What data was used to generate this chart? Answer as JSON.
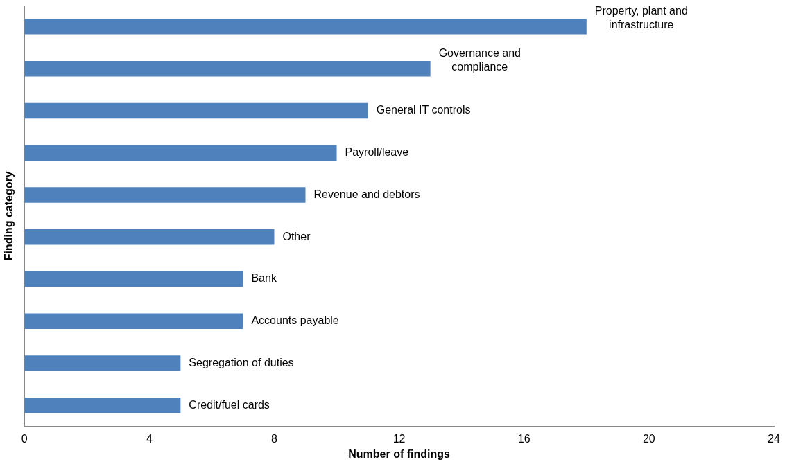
{
  "chart_data": {
    "type": "bar",
    "orientation": "horizontal",
    "xlabel": "Number of findings",
    "ylabel": "Finding category",
    "categories": [
      "Property, plant and infrastructure",
      "Governance and compliance",
      "General IT controls",
      "Payroll/leave",
      "Revenue and debtors",
      "Other",
      "Bank",
      "Accounts payable",
      "Segregation of duties",
      "Credit/fuel cards"
    ],
    "values": [
      18,
      13,
      11,
      10,
      9,
      8,
      7,
      7,
      5,
      5
    ],
    "color": "#4f81bd",
    "xlim": [
      0,
      24
    ],
    "xticks": [
      0,
      4,
      8,
      12,
      16,
      20,
      24
    ],
    "grid": false,
    "legend": false,
    "tick_labels": "x"
  }
}
